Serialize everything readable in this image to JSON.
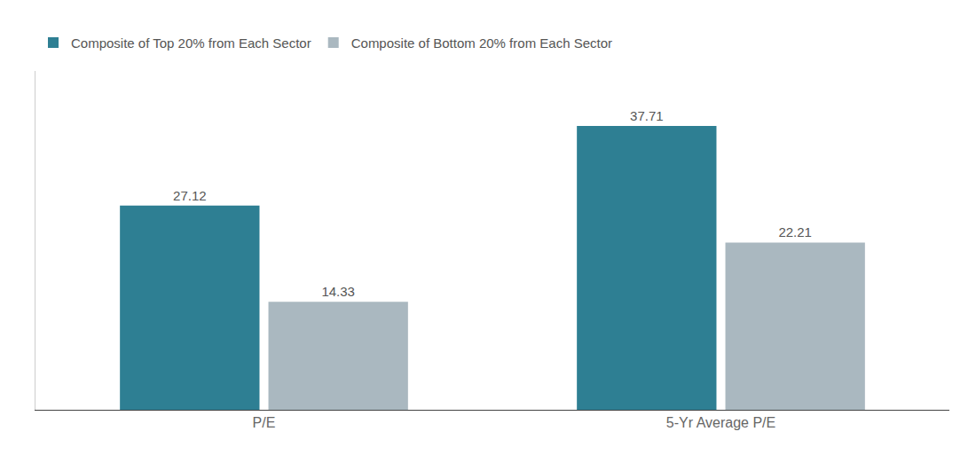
{
  "chart_data": {
    "type": "bar",
    "categories": [
      "P/E",
      "5-Yr Average P/E"
    ],
    "series": [
      {
        "name": "Composite of Top 20% from Each Sector",
        "color": "#2e7f93",
        "values": [
          27.12,
          37.71
        ]
      },
      {
        "name": "Composite of Bottom 20% from Each Sector",
        "color": "#aab8c0",
        "values": [
          14.33,
          22.21
        ]
      }
    ],
    "ylim": [
      0,
      45
    ],
    "grid": false,
    "legend": "top-left",
    "data_labels": true,
    "tick_labels": "x"
  }
}
